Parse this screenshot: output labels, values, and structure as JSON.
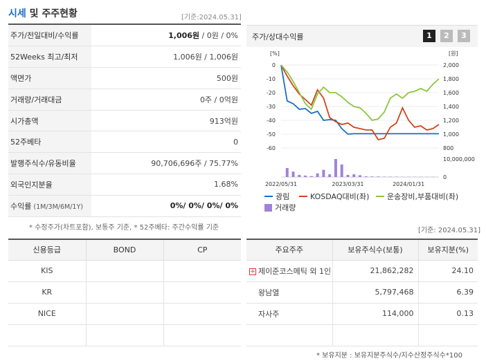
{
  "header": {
    "title_main": "시세",
    "title_rest": " 및 주주현황",
    "date": "[기준:2024.05.31]"
  },
  "summary_rows": [
    {
      "label": "주가/전일대비/수익률",
      "value_bold": "1,006원",
      "value_rest": " / 0원 / 0%"
    },
    {
      "label": "52Weeks 최고/최저",
      "value": "1,006원 / 1,006원"
    },
    {
      "label": "액면가",
      "value": "500원"
    },
    {
      "label": "거래량/거래대금",
      "value": "0주 / 0억원"
    },
    {
      "label": "시가총액",
      "value": "913억원"
    },
    {
      "label": "52주베타",
      "value": "0"
    },
    {
      "label": "발행주식수/유동비율",
      "value": "90,706,696주 / 75.77%"
    },
    {
      "label": "외국인지분율",
      "value": "1.68%"
    },
    {
      "label": "수익률",
      "label_sub": " (1M/3M/6M/1Y)",
      "value": "0%/ 0%/ 0%/ 0%"
    }
  ],
  "note_left": "* 수정주가(차트포함), 보통주 기준, * 52주베타: 주간수익률 기준",
  "chart_panel": {
    "title": "주가/상대수익률",
    "pages": [
      "1",
      "2",
      "3"
    ],
    "left_unit": "[%]",
    "right_unit": "[원]",
    "legend": [
      {
        "name": "광림",
        "color": "#1b6ec2"
      },
      {
        "name": "KOSDAQ대비(좌)",
        "color": "#d0441a"
      },
      {
        "name": "운송장비,부품대비(좌)",
        "color": "#8cc63e"
      },
      {
        "name": "거래량",
        "color": "#a083d8"
      }
    ],
    "date_right": "[기준: 2024.05.31]"
  },
  "chart_data": {
    "type": "line",
    "x_ticks": [
      "2022/05/31",
      "2023/03/31",
      "2024/01/31"
    ],
    "left_axis": {
      "label": "[%]",
      "ticks": [
        0,
        -10,
        -20,
        -30,
        -40,
        -50,
        -60
      ],
      "range": [
        -60,
        0
      ]
    },
    "right_axis": {
      "label": "[원]",
      "ticks": [
        "2,000",
        "1,800",
        "1,600",
        "1,400",
        "1,200",
        "1,000",
        "800"
      ],
      "range": [
        800,
        2000
      ]
    },
    "volume_axis": {
      "ticks": [
        "10,000,000",
        "0"
      ],
      "range": [
        0,
        10000000
      ]
    },
    "series": [
      {
        "name": "광림",
        "axis": "right",
        "color": "#1b6ec2",
        "values": [
          2000,
          1480,
          1440,
          1360,
          1370,
          1300,
          1330,
          1200,
          1210,
          1200,
          1080,
          1000,
          1006,
          1006,
          1006,
          1006,
          1006,
          1006,
          1006,
          1006,
          1006,
          1006,
          1006,
          1006,
          1006,
          1006,
          1006
        ]
      },
      {
        "name": "KOSDAQ대비(좌)",
        "axis": "left",
        "color": "#d0441a",
        "values": [
          0,
          -8,
          -15,
          -21,
          -25,
          -29,
          -18,
          -24,
          -38,
          -41,
          -43,
          -42,
          -45,
          -46,
          -47,
          -47,
          -54,
          -53,
          -45,
          -42,
          -31,
          -40,
          -45,
          -44,
          -47,
          -46,
          -43
        ]
      },
      {
        "name": "운송장비,부품대비(좌)",
        "axis": "left",
        "color": "#8cc63e",
        "values": [
          0,
          -5,
          -12,
          -20,
          -28,
          -32,
          -21,
          -16,
          -20,
          -20,
          -23,
          -27,
          -30,
          -31,
          -35,
          -40,
          -39,
          -34,
          -24,
          -21,
          -24,
          -20,
          -19,
          -17,
          -19,
          -14,
          -10
        ]
      },
      {
        "name": "거래량",
        "axis": "volume",
        "color": "#a083d8",
        "values": [
          0,
          5000000,
          3000000,
          1200000,
          800000,
          500000,
          2000000,
          4000000,
          1500000,
          10000000,
          7000000,
          1200000,
          1500000,
          1000000,
          400000,
          300000,
          300000,
          200000,
          200000,
          200000,
          100000,
          100000,
          100000,
          100000,
          100000,
          100000,
          0
        ]
      }
    ]
  },
  "credit_table": {
    "headers": [
      "신용등급",
      "BOND",
      "CP"
    ],
    "rows": [
      [
        "KIS",
        "",
        ""
      ],
      [
        "KR",
        "",
        ""
      ],
      [
        "NICE",
        "",
        ""
      ],
      [
        "",
        "",
        ""
      ]
    ]
  },
  "holders_table": {
    "headers": [
      "주요주주",
      "보유주식수(보통)",
      "보유지분(%)"
    ],
    "rows": [
      {
        "name": "제이준코스메틱 외 1인",
        "shares": "21,862,282",
        "pct": "24.10",
        "icon": "plus-icon"
      },
      {
        "name": "왕남열",
        "shares": "5,797,468",
        "pct": "6.39"
      },
      {
        "name": "자사주",
        "shares": "114,000",
        "pct": "0.13"
      },
      {
        "name": "",
        "shares": "",
        "pct": ""
      }
    ]
  },
  "note_bottom": "* 보유지분 : 보유지분주식수/지수산정주식수*100"
}
